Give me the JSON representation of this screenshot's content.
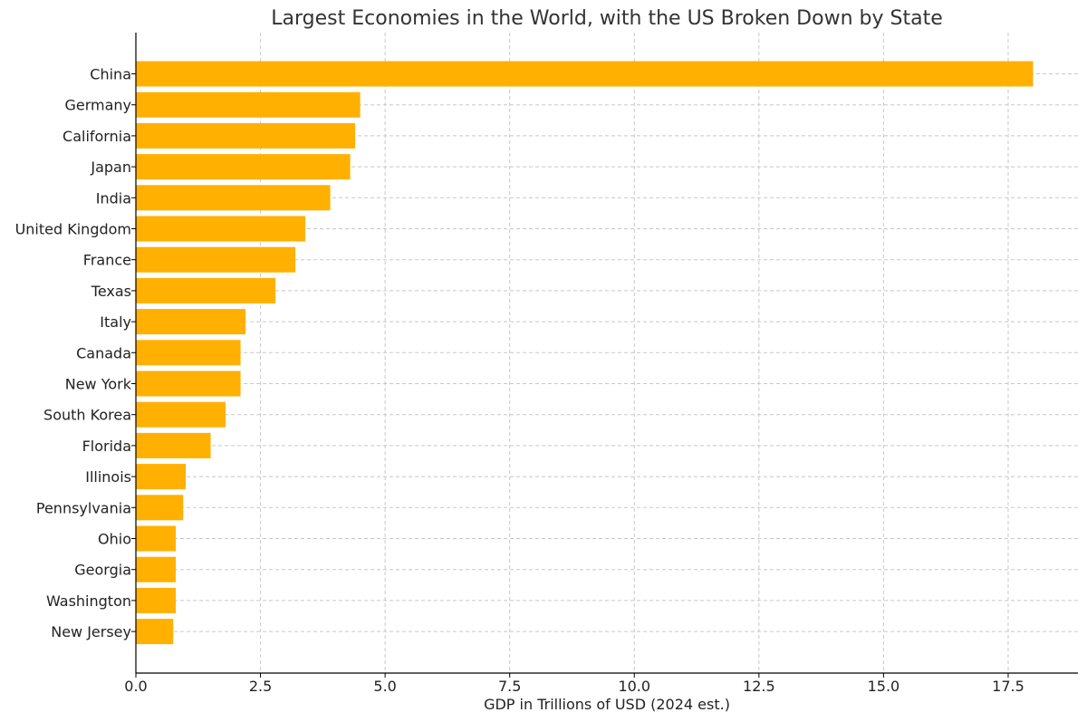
{
  "chart_data": {
    "type": "bar",
    "orientation": "horizontal",
    "title": "Largest Economies in the World, with the US Broken Down by State",
    "xlabel": "GDP in Trillions of USD (2024 est.)",
    "ylabel": "",
    "xlim": [
      0,
      18.9
    ],
    "xticks": [
      0.0,
      2.5,
      5.0,
      7.5,
      10.0,
      12.5,
      15.0,
      17.5
    ],
    "xtick_labels": [
      "0.0",
      "2.5",
      "5.0",
      "7.5",
      "10.0",
      "12.5",
      "15.0",
      "17.5"
    ],
    "grid": true,
    "bar_color": "#ffb000",
    "categories": [
      "China",
      "Germany",
      "California",
      "Japan",
      "India",
      "United Kingdom",
      "France",
      "Texas",
      "Italy",
      "Canada",
      "New York",
      "South Korea",
      "Florida",
      "Illinois",
      "Pennsylvania",
      "Ohio",
      "Georgia",
      "Washington",
      "New Jersey"
    ],
    "values": [
      18.0,
      4.5,
      4.4,
      4.3,
      3.9,
      3.4,
      3.2,
      2.8,
      2.2,
      2.1,
      2.1,
      1.8,
      1.5,
      1.0,
      0.95,
      0.8,
      0.8,
      0.8,
      0.75
    ]
  }
}
